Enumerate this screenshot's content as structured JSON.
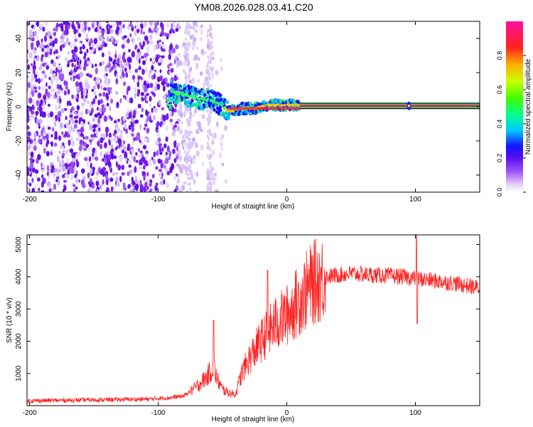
{
  "figure_title": "YM08.2026.028.03.41.C20",
  "chart_data": [
    {
      "type": "heatmap",
      "title": "YM08.2026.028.03.41.C20",
      "xlabel": "Height of straight line (km)",
      "ylabel": "Frequency (Hz)",
      "xlim": [
        -202,
        150
      ],
      "ylim": [
        -50,
        50
      ],
      "x_ticks": [
        -200,
        -100,
        0,
        100
      ],
      "x_tick_labels": [
        "-200",
        "-100",
        "0",
        "100"
      ],
      "y_ticks": [
        -40,
        -20,
        0,
        20,
        40
      ],
      "y_tick_labels": [
        "-40",
        "-20",
        "0",
        "20",
        "40"
      ],
      "colorbar": {
        "label": "Normalized spectral amplitude",
        "range": [
          0,
          1
        ],
        "ticks": [
          0,
          0.2,
          0.4,
          0.6,
          0.8
        ],
        "tick_labels": [
          "0.0",
          "0.2",
          "0.4",
          "0.6",
          "0.8"
        ],
        "colors": [
          "#e8d8f8",
          "#9d55f5",
          "#6a1be6",
          "#1414ff",
          "#00c8ff",
          "#00ff60",
          "#90ff00",
          "#ffff00",
          "#ff8800",
          "#ff1010",
          "#ff1490"
        ]
      },
      "ridge": {
        "description_points_km_hz": [
          [
            -90,
            9
          ],
          [
            -80,
            7
          ],
          [
            -70,
            5
          ],
          [
            -60,
            4
          ],
          [
            -50,
            1
          ],
          [
            -45,
            -3
          ],
          [
            -35,
            -1
          ],
          [
            -25,
            -1
          ],
          [
            -15,
            1
          ],
          [
            -5,
            1
          ],
          [
            5,
            1
          ],
          [
            150,
            1
          ]
        ],
        "steady_from_km": 10,
        "steady_freq_hz": 0.5
      },
      "noise_region_km": [
        -202,
        -85
      ]
    },
    {
      "type": "line",
      "xlabel": "Height of straight line (km)",
      "ylabel": "SNR (10 * v/v)",
      "xlim": [
        -202,
        150
      ],
      "ylim": [
        0,
        5300
      ],
      "x_ticks": [
        -200,
        -100,
        0,
        100
      ],
      "x_tick_labels": [
        "-200",
        "-100",
        "0",
        "100"
      ],
      "y_ticks": [
        1000,
        2000,
        3000,
        4000,
        5000
      ],
      "y_tick_labels": [
        "1000",
        "2000",
        "3000",
        "4000",
        "5000"
      ],
      "series_color": "#ff2020",
      "envelope": [
        {
          "x": -202,
          "y": 150
        },
        {
          "x": -150,
          "y": 180
        },
        {
          "x": -110,
          "y": 200
        },
        {
          "x": -90,
          "y": 250
        },
        {
          "x": -80,
          "y": 300
        },
        {
          "x": -70,
          "y": 600
        },
        {
          "x": -62,
          "y": 900
        },
        {
          "x": -57,
          "y": 1200
        },
        {
          "x": -54,
          "y": 800
        },
        {
          "x": -50,
          "y": 500
        },
        {
          "x": -45,
          "y": 400
        },
        {
          "x": -40,
          "y": 350
        },
        {
          "x": -35,
          "y": 1000
        },
        {
          "x": -30,
          "y": 1400
        },
        {
          "x": -20,
          "y": 2000
        },
        {
          "x": -10,
          "y": 2500
        },
        {
          "x": 0,
          "y": 2800
        },
        {
          "x": 10,
          "y": 3300
        },
        {
          "x": 20,
          "y": 3800
        },
        {
          "x": 30,
          "y": 4000
        },
        {
          "x": 50,
          "y": 4100
        },
        {
          "x": 70,
          "y": 4050
        },
        {
          "x": 90,
          "y": 4000
        },
        {
          "x": 100,
          "y": 3950
        },
        {
          "x": 110,
          "y": 3900
        },
        {
          "x": 130,
          "y": 3800
        },
        {
          "x": 150,
          "y": 3650
        }
      ],
      "spikes": [
        {
          "x": -57,
          "y": 2650
        },
        {
          "x": -15,
          "y": 4200
        },
        {
          "x": 101,
          "y": 5300
        }
      ]
    }
  ]
}
